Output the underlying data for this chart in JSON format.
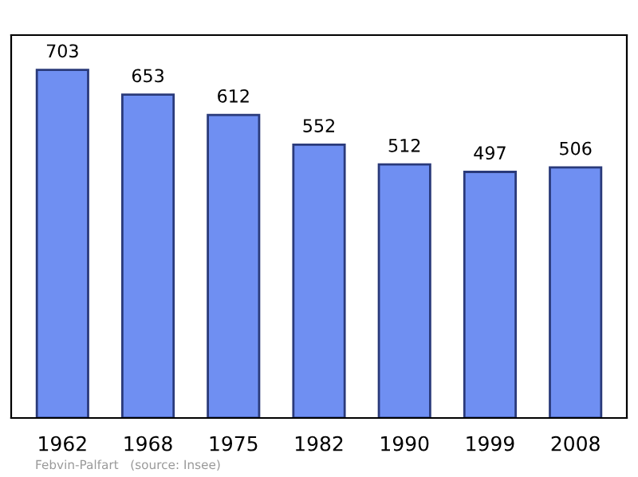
{
  "chart_data": {
    "type": "bar",
    "categories": [
      "1962",
      "1968",
      "1975",
      "1982",
      "1990",
      "1999",
      "2008"
    ],
    "values": [
      703,
      653,
      612,
      552,
      512,
      497,
      506
    ],
    "color": "#6f8ff2",
    "data_labels": true,
    "grid": false,
    "legend": false,
    "annotations": [
      "Febvin-Palfart   (source: Insee)"
    ]
  }
}
